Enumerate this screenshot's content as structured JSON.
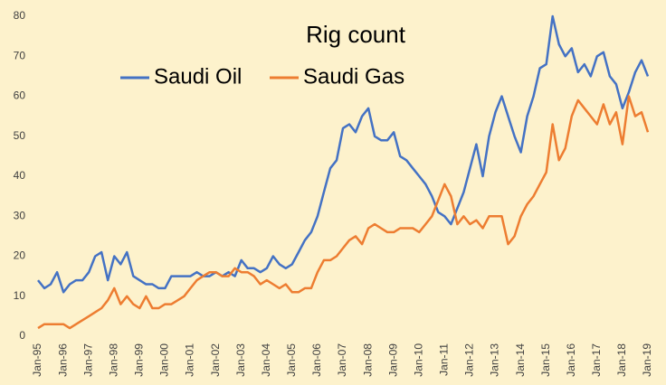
{
  "chart_data": {
    "type": "line",
    "title": "Rig count",
    "categories": [
      "Jan-95",
      null,
      null,
      null,
      "Jan-96",
      null,
      null,
      null,
      "Jan-97",
      null,
      null,
      null,
      "Jan-98",
      null,
      null,
      null,
      "Jan-99",
      null,
      null,
      null,
      "Jan-00",
      null,
      null,
      null,
      "Jan-01",
      null,
      null,
      null,
      "Jan-02",
      null,
      null,
      null,
      "Jan-03",
      null,
      null,
      null,
      "Jan-04",
      null,
      null,
      null,
      "Jan-05",
      null,
      null,
      null,
      "Jan-06",
      null,
      null,
      null,
      "Jan-07",
      null,
      null,
      null,
      "Jan-08",
      null,
      null,
      null,
      "Jan-09",
      null,
      null,
      null,
      "Jan-10",
      null,
      null,
      null,
      "Jan-11",
      null,
      null,
      null,
      "Jan-12",
      null,
      null,
      null,
      "Jan-13",
      null,
      null,
      null,
      "Jan-14",
      null,
      null,
      null,
      "Jan-15",
      null,
      null,
      null,
      "Jan-16",
      null,
      null,
      null,
      "Jan-17",
      null,
      null,
      null,
      "Jan-18",
      null,
      null,
      null,
      "Jan-19"
    ],
    "series": [
      {
        "name": "Saudi Oil",
        "color": "#4472c4",
        "values": [
          14,
          12,
          13,
          16,
          11,
          13,
          14,
          14,
          16,
          20,
          21,
          14,
          20,
          18,
          21,
          15,
          14,
          13,
          13,
          12,
          12,
          15,
          15,
          15,
          15,
          16,
          15,
          15,
          16,
          15,
          16,
          15,
          19,
          17,
          17,
          16,
          17,
          20,
          18,
          17,
          18,
          21,
          24,
          26,
          30,
          36,
          42,
          44,
          52,
          53,
          51,
          55,
          57,
          50,
          49,
          49,
          51,
          45,
          44,
          42,
          40,
          38,
          35,
          31,
          30,
          28,
          32,
          36,
          42,
          48,
          40,
          50,
          56,
          60,
          55,
          50,
          46,
          55,
          60,
          67,
          68,
          80,
          73,
          70,
          72,
          66,
          68,
          65,
          70,
          71,
          65,
          63,
          57,
          61,
          66,
          69,
          65
        ]
      },
      {
        "name": "Saudi Gas",
        "color": "#ed7d31",
        "values": [
          2,
          3,
          3,
          3,
          3,
          2,
          3,
          4,
          5,
          6,
          7,
          9,
          12,
          8,
          10,
          8,
          7,
          10,
          7,
          7,
          8,
          8,
          9,
          10,
          12,
          14,
          15,
          16,
          16,
          15,
          15,
          17,
          16,
          16,
          15,
          13,
          14,
          13,
          12,
          13,
          11,
          11,
          12,
          12,
          16,
          19,
          19,
          20,
          22,
          24,
          25,
          23,
          27,
          28,
          27,
          26,
          26,
          27,
          27,
          27,
          26,
          28,
          30,
          34,
          38,
          35,
          28,
          30,
          28,
          29,
          27,
          30,
          30,
          30,
          23,
          25,
          30,
          33,
          35,
          38,
          41,
          53,
          44,
          47,
          55,
          59,
          57,
          55,
          53,
          58,
          53,
          56,
          48,
          60,
          55,
          56,
          51
        ]
      }
    ],
    "ylim": [
      0,
      80
    ],
    "yticks": [
      0,
      10,
      20,
      30,
      40,
      50,
      60,
      70,
      80
    ],
    "grid": false
  }
}
